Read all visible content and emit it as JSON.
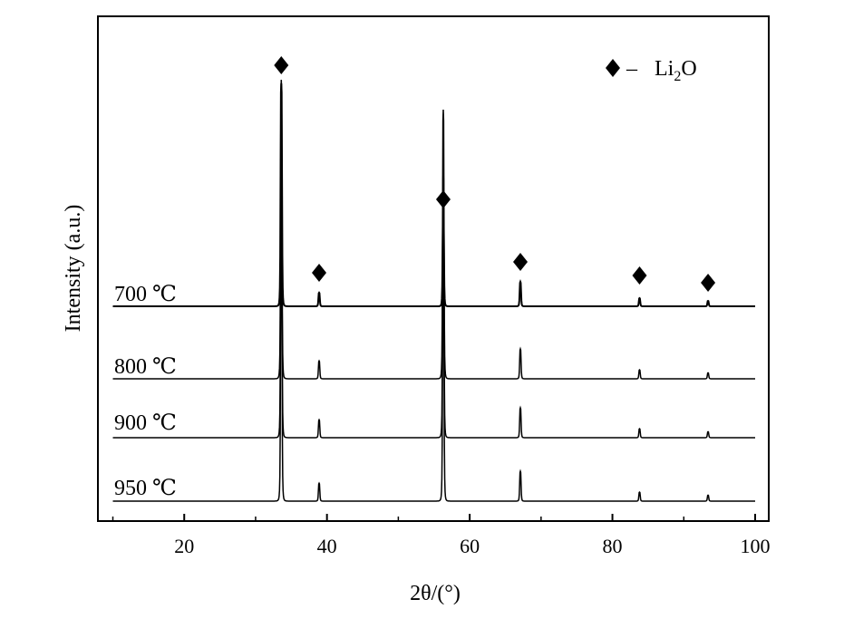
{
  "chart_data": {
    "type": "line",
    "title": "",
    "xlabel": "2θ/(°)",
    "ylabel": "Intensity (a.u.)",
    "xlim": [
      10,
      100
    ],
    "x_ticks": [
      20,
      40,
      60,
      80,
      100
    ],
    "x_minor_ticks": [
      10,
      30,
      50,
      70,
      90
    ],
    "y_ticks": [],
    "grid": false,
    "stacked_offset": true,
    "series": [
      {
        "name": "700 ℃",
        "peaks": [
          {
            "x": 33.6,
            "height": 0.82
          },
          {
            "x": 38.9,
            "height": 0.05
          },
          {
            "x": 56.3,
            "height": 0.33
          },
          {
            "x": 67.1,
            "height": 0.09
          },
          {
            "x": 83.8,
            "height": 0.03
          },
          {
            "x": 93.4,
            "height": 0.02
          }
        ]
      },
      {
        "name": "800 ℃",
        "peaks": [
          {
            "x": 33.6,
            "height": 1.0
          },
          {
            "x": 38.9,
            "height": 0.06
          },
          {
            "x": 56.3,
            "height": 0.9
          },
          {
            "x": 67.1,
            "height": 0.1
          },
          {
            "x": 83.8,
            "height": 0.03
          },
          {
            "x": 93.4,
            "height": 0.02
          }
        ]
      },
      {
        "name": "900 ℃",
        "peaks": [
          {
            "x": 33.6,
            "height": 1.0
          },
          {
            "x": 38.9,
            "height": 0.06
          },
          {
            "x": 56.3,
            "height": 0.9
          },
          {
            "x": 67.1,
            "height": 0.1
          },
          {
            "x": 83.8,
            "height": 0.03
          },
          {
            "x": 93.4,
            "height": 0.02
          }
        ]
      },
      {
        "name": "950 ℃",
        "peaks": [
          {
            "x": 33.6,
            "height": 1.0
          },
          {
            "x": 38.9,
            "height": 0.06
          },
          {
            "x": 56.3,
            "height": 0.9
          },
          {
            "x": 67.1,
            "height": 0.1
          },
          {
            "x": 83.8,
            "height": 0.03
          },
          {
            "x": 93.4,
            "height": 0.02
          }
        ]
      }
    ],
    "peak_markers": [
      33.6,
      38.9,
      56.3,
      67.1,
      83.8,
      93.4
    ],
    "legend": {
      "symbol": "diamond",
      "dash": "–",
      "phase": "Li",
      "subscript": "2",
      "phase_suffix": "O",
      "placement": "top-right"
    }
  },
  "colors": {
    "line": "#000000",
    "marker": "#000000",
    "background": "#ffffff"
  }
}
